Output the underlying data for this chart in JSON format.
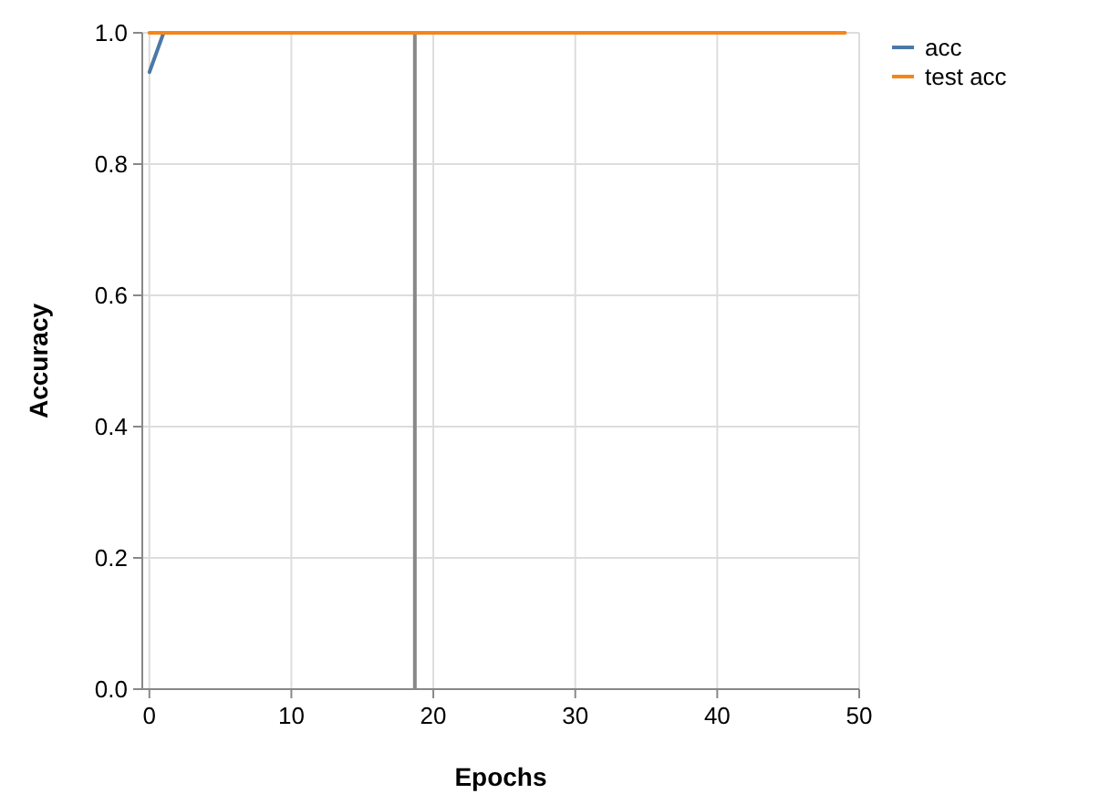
{
  "chart_data": {
    "type": "line",
    "xlabel": "Epochs",
    "ylabel": "Accuracy",
    "x": [
      0,
      1,
      2,
      3,
      4,
      5,
      6,
      7,
      8,
      9,
      10,
      11,
      12,
      13,
      14,
      15,
      16,
      17,
      18,
      19,
      20,
      21,
      22,
      23,
      24,
      25,
      26,
      27,
      28,
      29,
      30,
      31,
      32,
      33,
      34,
      35,
      36,
      37,
      38,
      39,
      40,
      41,
      42,
      43,
      44,
      45,
      46,
      47,
      48,
      49
    ],
    "series": [
      {
        "name": "acc",
        "color": "#4c78a8",
        "values": [
          0.94,
          1,
          null,
          null,
          null,
          null,
          null,
          null,
          null,
          null,
          null,
          null,
          null,
          null,
          null,
          null,
          null,
          null,
          null,
          null,
          null,
          null,
          null,
          null,
          null,
          null,
          null,
          null,
          null,
          null,
          null,
          null,
          null,
          null,
          null,
          null,
          null,
          null,
          null,
          null,
          null,
          null,
          null,
          null,
          null,
          null,
          null,
          null,
          null,
          null
        ]
      },
      {
        "name": "test acc",
        "color": "#f58518",
        "values": [
          1,
          1,
          1,
          1,
          1,
          1,
          1,
          1,
          1,
          1,
          1,
          1,
          1,
          1,
          1,
          1,
          1,
          1,
          1,
          1,
          1,
          1,
          1,
          1,
          1,
          1,
          1,
          1,
          1,
          1,
          1,
          1,
          1,
          1,
          1,
          1,
          1,
          1,
          1,
          1,
          1,
          1,
          1,
          1,
          1,
          1,
          1,
          1,
          1,
          1
        ]
      }
    ],
    "xlim": [
      -0.5,
      50
    ],
    "xticks": [
      0,
      10,
      20,
      30,
      40,
      50
    ],
    "ylim": [
      0,
      1
    ],
    "yticks": [
      {
        "value": 0,
        "label": "0.0"
      },
      0.2,
      0.4,
      0.6,
      0.8,
      {
        "value": 1,
        "label": "1.0"
      }
    ],
    "ref_lines": [
      {
        "axis": "x",
        "value": 18.7,
        "color": "#888888"
      }
    ],
    "grid": true,
    "legend": "top right"
  }
}
